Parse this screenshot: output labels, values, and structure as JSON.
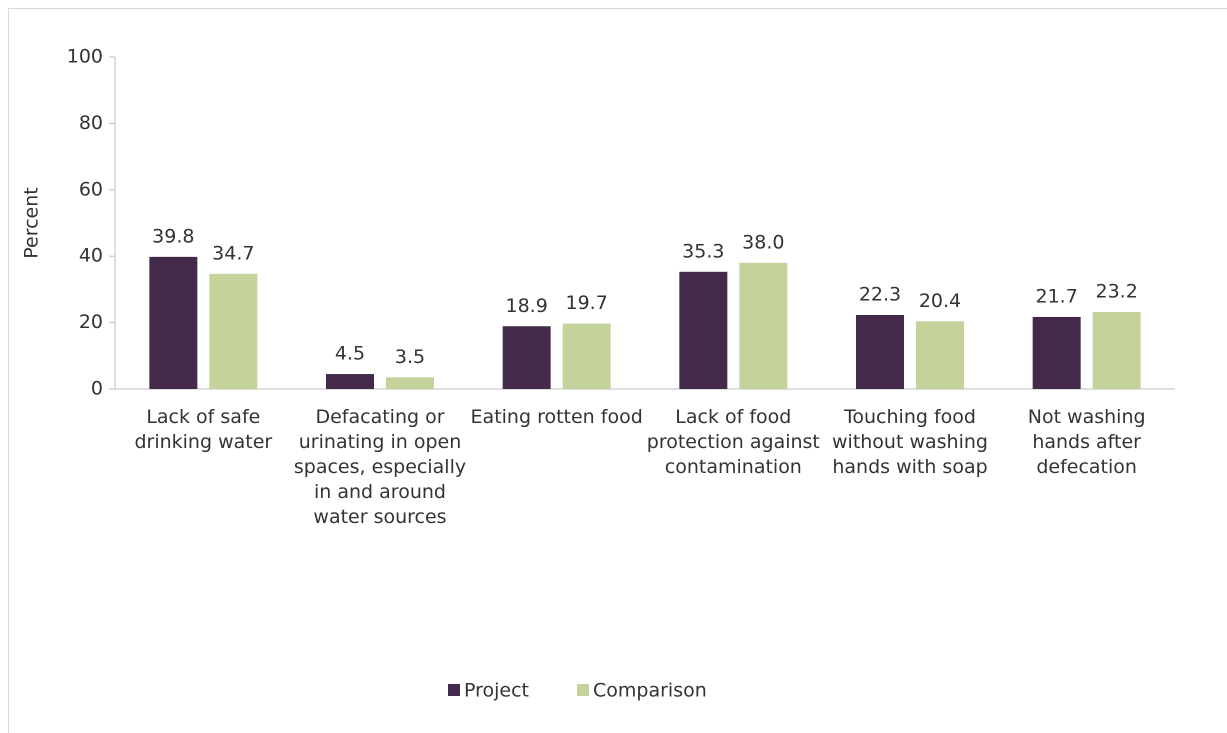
{
  "chart_data": {
    "type": "bar",
    "y_label": "Percent",
    "categories": [
      "Lack of safe drinking water",
      "Defacating or urinating in open spaces, especially in and around water sources",
      "Eating rotten food",
      "Lack of food protection against contamination",
      "Touching food without washing hands with soap",
      "Not washing hands after defecation"
    ],
    "series": [
      {
        "name": "Project",
        "color": "#432a4a",
        "values": [
          39.8,
          4.5,
          18.9,
          35.3,
          22.3,
          21.7
        ],
        "value_labels": [
          "39.8",
          "4.5",
          "18.9",
          "35.3",
          "22.3",
          "21.7"
        ]
      },
      {
        "name": "Comparison",
        "color": "#c3d39b",
        "values": [
          34.7,
          3.5,
          19.7,
          38.0,
          20.4,
          23.2
        ],
        "value_labels": [
          "34.7",
          "3.5",
          "19.7",
          "38.0",
          "20.4",
          "23.2"
        ]
      }
    ],
    "ylim": [
      0,
      100
    ],
    "yticks": [
      0,
      20,
      40,
      60,
      80,
      100
    ],
    "legend": "bottom"
  }
}
